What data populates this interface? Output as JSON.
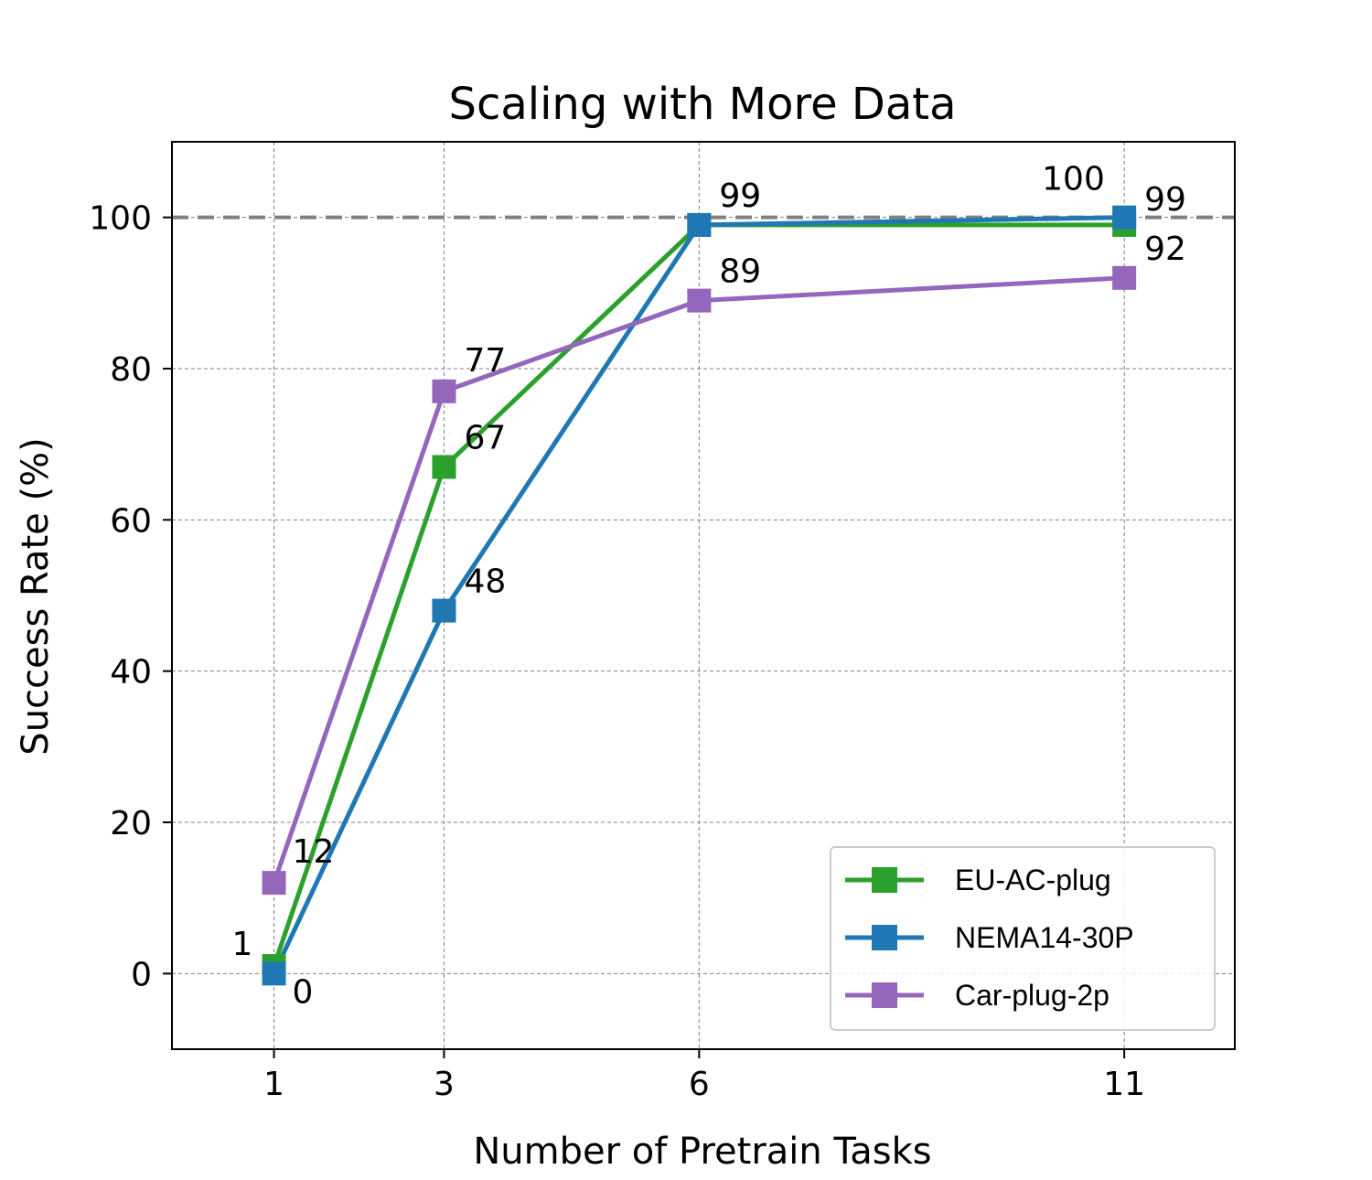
{
  "chart_data": {
    "type": "line",
    "title": "Scaling with More Data",
    "xlabel": "Number of Pretrain Tasks",
    "ylabel": "Success Rate (%)",
    "x": [
      1,
      3,
      6,
      11
    ],
    "x_tick_labels": [
      "1",
      "3",
      "6",
      "11"
    ],
    "xlim": [
      -0.2,
      12.3
    ],
    "ylim": [
      -10,
      110
    ],
    "y_ticks": [
      0,
      20,
      40,
      60,
      80,
      100
    ],
    "y_tick_labels": [
      "0",
      "20",
      "40",
      "60",
      "80",
      "100"
    ],
    "grid": true,
    "reference_line": {
      "y": 100,
      "style": "dashed",
      "color": "#808080"
    },
    "legend_position": "lower-right",
    "series": [
      {
        "name": "EU-AC-plug",
        "color": "#2ca02c",
        "marker": "square",
        "values": [
          1,
          67,
          99,
          99
        ],
        "labels": [
          "1",
          "67",
          "99",
          "99"
        ]
      },
      {
        "name": "NEMA14-30P",
        "color": "#1f77b4",
        "marker": "square",
        "values": [
          0,
          48,
          99,
          100
        ],
        "labels": [
          "0",
          "48",
          "99",
          "100"
        ]
      },
      {
        "name": "Car-plug-2p",
        "color": "#9467bd",
        "marker": "square",
        "values": [
          12,
          77,
          89,
          92
        ],
        "labels": [
          "12",
          "77",
          "89",
          "92"
        ]
      }
    ]
  }
}
